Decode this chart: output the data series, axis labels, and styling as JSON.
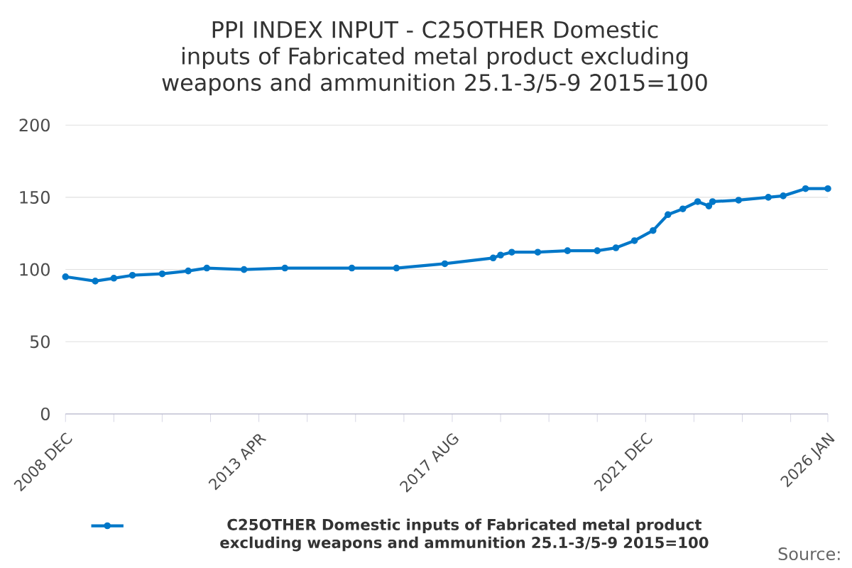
{
  "chart_data": {
    "type": "line",
    "title": "PPI INDEX INPUT - C25OTHER Domestic inputs of Fabricated metal product excluding weapons and ammunition 25.1-3/5-9 2015=100",
    "x": [
      "2008-12",
      "2009-08",
      "2010-01",
      "2010-06",
      "2011-02",
      "2011-09",
      "2012-02",
      "2012-12",
      "2013-11",
      "2015-05",
      "2016-05",
      "2017-06",
      "2018-07",
      "2018-09",
      "2018-12",
      "2019-07",
      "2020-03",
      "2020-11",
      "2021-04",
      "2021-09",
      "2022-02",
      "2022-06",
      "2022-10",
      "2023-02",
      "2023-05",
      "2023-06",
      "2024-01",
      "2024-09",
      "2025-01",
      "2025-07",
      "2026-01"
    ],
    "series": [
      {
        "name": "C25OTHER Domestic inputs of Fabricated metal product excluding weapons and ammunition 25.1-3/5-9 2015=100",
        "color": "#0077c8",
        "values": [
          95,
          92,
          94,
          96,
          97,
          99,
          101,
          100,
          101,
          101,
          101,
          104,
          108,
          110,
          112,
          112,
          113,
          113,
          115,
          120,
          127,
          138,
          142,
          147,
          144,
          147,
          148,
          150,
          151,
          156,
          156
        ]
      }
    ],
    "xlim": [
      "2008-12",
      "2026-01"
    ],
    "xticks": [
      {
        "value": "2008-12",
        "label": "2008 DEC"
      },
      {
        "value": "2010-01",
        "label": null
      },
      {
        "value": "2011-02",
        "label": null
      },
      {
        "value": "2012-03",
        "label": null
      },
      {
        "value": "2013-04",
        "label": "2013 APR"
      },
      {
        "value": "2014-05",
        "label": null
      },
      {
        "value": "2015-06",
        "label": null
      },
      {
        "value": "2016-07",
        "label": null
      },
      {
        "value": "2017-08",
        "label": "2017 AUG"
      },
      {
        "value": "2018-09",
        "label": null
      },
      {
        "value": "2019-10",
        "label": null
      },
      {
        "value": "2020-11",
        "label": null
      },
      {
        "value": "2021-12",
        "label": "2021 DEC"
      },
      {
        "value": "2023-01",
        "label": null
      },
      {
        "value": "2024-02",
        "label": null
      },
      {
        "value": "2025-03",
        "label": null
      },
      {
        "value": "2026-01",
        "label": "2026 JAN"
      }
    ],
    "ylim": [
      0,
      200
    ],
    "yticks": [
      0,
      50,
      100,
      150,
      200
    ],
    "grid": "y",
    "legend": "bottom",
    "marker": "circle",
    "annotations": [
      "Source:"
    ]
  }
}
